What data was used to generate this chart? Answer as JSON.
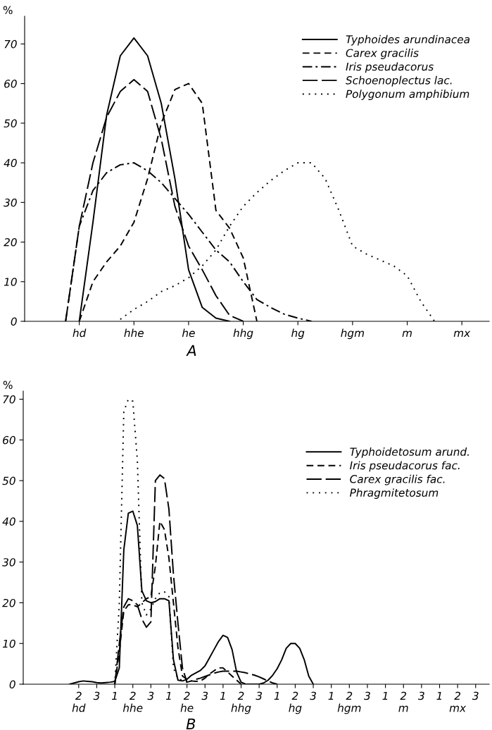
{
  "chart_data": [
    {
      "type": "line",
      "title": "A",
      "ylabel": "%",
      "ylim": [
        0,
        77
      ],
      "yticks": [
        0,
        10,
        20,
        30,
        40,
        50,
        60,
        70
      ],
      "categories": [
        null,
        null,
        null,
        null,
        "hd",
        null,
        null,
        null,
        "hhe",
        null,
        null,
        null,
        "he",
        null,
        null,
        null,
        "hhg",
        null,
        null,
        null,
        "hg",
        null,
        null,
        null,
        "hgm",
        null,
        null,
        null,
        "m",
        null,
        null,
        null,
        "mx",
        null,
        null
      ],
      "legend": "top right",
      "grid": false,
      "marker": "none",
      "series": [
        {
          "name": "Typhoides arundinacea",
          "color": "#000000",
          "line_style": "solid",
          "values": [
            null,
            null,
            null,
            null,
            0,
            25,
            52,
            67,
            71.5,
            67,
            55,
            36,
            13,
            3.5,
            0.8,
            0,
            null,
            null,
            null,
            null,
            null,
            null,
            null,
            null,
            null,
            null,
            null,
            null,
            null,
            null,
            null,
            null,
            null,
            null,
            null
          ]
        },
        {
          "name": "Carex gracilis",
          "color": "#000000",
          "line_style": "dashed",
          "values": [
            null,
            null,
            null,
            null,
            0,
            10,
            15,
            19,
            25,
            36,
            50,
            58.5,
            60,
            55,
            28,
            23.5,
            16,
            0,
            null,
            null,
            null,
            null,
            null,
            null,
            null,
            null,
            null,
            null,
            null,
            null,
            null,
            null,
            null,
            null,
            null
          ]
        },
        {
          "name": "Iris pseudacorus",
          "color": "#000000",
          "line_style": "dashdot",
          "values": [
            null,
            null,
            null,
            0,
            24,
            33,
            37.5,
            39.5,
            40,
            38,
            35,
            31,
            27,
            22.5,
            18,
            15,
            10,
            5.5,
            3.5,
            1.8,
            0.8,
            0,
            null,
            null,
            null,
            null,
            null,
            null,
            null,
            null,
            null,
            null,
            null,
            null,
            null
          ]
        },
        {
          "name": "Schoenoplectus lac.",
          "color": "#000000",
          "line_style": "longdash",
          "values": [
            null,
            null,
            null,
            0,
            24,
            40,
            51.5,
            58,
            61,
            58,
            46,
            29,
            19,
            13,
            6.5,
            1.5,
            0,
            null,
            null,
            null,
            null,
            null,
            null,
            null,
            null,
            null,
            null,
            null,
            null,
            null,
            null,
            null,
            null,
            null,
            null
          ]
        },
        {
          "name": "Polygonum amphibium",
          "color": "#000000",
          "line_style": "dotted",
          "values": [
            null,
            null,
            null,
            null,
            null,
            null,
            null,
            0.5,
            3,
            5,
            7.5,
            9,
            11,
            14,
            18,
            24,
            29,
            32.5,
            35.5,
            38,
            40,
            40,
            36,
            28,
            19,
            17,
            15.5,
            14,
            11.5,
            5,
            0,
            null,
            null,
            null,
            null
          ]
        }
      ]
    },
    {
      "type": "line",
      "title": "B",
      "ylabel": "%",
      "ylim": [
        0,
        72
      ],
      "yticks": [
        0,
        10,
        20,
        30,
        40,
        50,
        60,
        70
      ],
      "categories": [
        null,
        null,
        null,
        null,
        null,
        null,
        null,
        null,
        null,
        null,
        null,
        null,
        "2\nhd",
        null,
        null,
        null,
        "3",
        null,
        null,
        null,
        "1",
        null,
        null,
        null,
        "2\nhhe",
        null,
        null,
        null,
        "3",
        null,
        null,
        null,
        "1",
        null,
        null,
        null,
        "2\nhe",
        null,
        null,
        null,
        "3",
        null,
        null,
        null,
        "1",
        null,
        null,
        null,
        "2\nhhg",
        null,
        null,
        null,
        "3",
        null,
        null,
        null,
        "1",
        null,
        null,
        null,
        "2\nhg",
        null,
        null,
        null,
        "3",
        null,
        null,
        null,
        "1",
        null,
        null,
        null,
        "2\nhgm",
        null,
        null,
        null,
        "3",
        null,
        null,
        null,
        "1",
        null,
        null,
        null,
        "2\nm",
        null,
        null,
        null,
        "3",
        null,
        null,
        null,
        "1",
        null,
        null,
        null,
        "2\nmx",
        null,
        null,
        null,
        "3",
        null,
        null,
        null
      ],
      "legend": "right",
      "grid": false,
      "marker": "none",
      "series": [
        {
          "name": "Typhoidetosum arund.",
          "color": "#000000",
          "line_style": "solid",
          "values": [
            null,
            null,
            null,
            null,
            null,
            null,
            null,
            null,
            null,
            null,
            0,
            0.3,
            0.6,
            0.8,
            0.7,
            0.6,
            0.4,
            0.3,
            0.4,
            0.5,
            0.7,
            4,
            33,
            42,
            42.5,
            39,
            23,
            20.5,
            20,
            20.3,
            21,
            21,
            20.5,
            6,
            1,
            0.8,
            1.2,
            2.2,
            2.8,
            3.4,
            4.5,
            6.5,
            8.5,
            10.5,
            12,
            11.5,
            8.5,
            3,
            0.5,
            0,
            0,
            0,
            0,
            0.3,
            1,
            2.2,
            3.8,
            6,
            8.8,
            10,
            10,
            8.8,
            6,
            2,
            0,
            null,
            null,
            null,
            null,
            null,
            null,
            null,
            null,
            null,
            null,
            null,
            null,
            null,
            null,
            null,
            null,
            null,
            null,
            null,
            null,
            null,
            null,
            null,
            null,
            null,
            null,
            null,
            null,
            null,
            null,
            null,
            null,
            null,
            null,
            null,
            null,
            null,
            null,
            null
          ]
        },
        {
          "name": "Iris pseudacorus fac.",
          "color": "#000000",
          "line_style": "dashed",
          "values": [
            null,
            null,
            null,
            null,
            null,
            null,
            null,
            null,
            null,
            null,
            null,
            null,
            null,
            null,
            null,
            null,
            null,
            null,
            null,
            null,
            0,
            8,
            18,
            19.5,
            19.5,
            19,
            20,
            21,
            21.5,
            29,
            40,
            38,
            31,
            20,
            9,
            2,
            1.2,
            0.8,
            0.7,
            0.8,
            1.5,
            2.5,
            3.3,
            4,
            4,
            3,
            2,
            1,
            0,
            null,
            null,
            null,
            null,
            null,
            null,
            null,
            null,
            null,
            null,
            null,
            null,
            null,
            null,
            null,
            null,
            null,
            null,
            null,
            null,
            null,
            null,
            null,
            null,
            null,
            null,
            null,
            null,
            null,
            null,
            null,
            null,
            null,
            null,
            null,
            null,
            null,
            null,
            null,
            null,
            null,
            null,
            null,
            null,
            null,
            null,
            null,
            null,
            null,
            null,
            null,
            null,
            null,
            null,
            null
          ]
        },
        {
          "name": "Carex gracilis fac.",
          "color": "#000000",
          "line_style": "longdash",
          "values": [
            null,
            null,
            null,
            null,
            null,
            null,
            null,
            null,
            null,
            null,
            null,
            null,
            null,
            null,
            null,
            null,
            null,
            null,
            null,
            null,
            0,
            10,
            19,
            21,
            20.5,
            19.5,
            16,
            14,
            15.3,
            50,
            51.4,
            50.5,
            43,
            27,
            15,
            4,
            0.5,
            0.8,
            1.2,
            1.5,
            1.9,
            2.3,
            2.7,
            3,
            3.2,
            3.2,
            3.2,
            3.2,
            3,
            2.8,
            2.5,
            2.2,
            1.8,
            1.3,
            0.8,
            0.3,
            0,
            null,
            null,
            null,
            null,
            null,
            null,
            null,
            null,
            null,
            null,
            null,
            null,
            null,
            null,
            null,
            null,
            null,
            null,
            null,
            null,
            null,
            null,
            null,
            null,
            null,
            null,
            null,
            null,
            null,
            null,
            null,
            null,
            null,
            null,
            null,
            null,
            null,
            null,
            null,
            null,
            null,
            null,
            null,
            null,
            null,
            null,
            null
          ]
        },
        {
          "name": "Phragmitetosum",
          "color": "#000000",
          "line_style": "dotted",
          "values": [
            null,
            null,
            null,
            null,
            null,
            null,
            null,
            null,
            null,
            null,
            null,
            null,
            null,
            null,
            null,
            null,
            null,
            null,
            null,
            null,
            0,
            20,
            67,
            70,
            69.5,
            55,
            20,
            17,
            18.5,
            21,
            22.5,
            22.7,
            21.5,
            4,
            1.3,
            1,
            0.5,
            0,
            null,
            null,
            null,
            null,
            null,
            null,
            null,
            null,
            null,
            null,
            null,
            null,
            null,
            null,
            null,
            null,
            null,
            null,
            null,
            null,
            null,
            null,
            null,
            null,
            null,
            null,
            null,
            null,
            null,
            null,
            null,
            null,
            null,
            null,
            null,
            null,
            null,
            null,
            null,
            null,
            null,
            null,
            null,
            null,
            null,
            null,
            null,
            null,
            null,
            null,
            null,
            null,
            null,
            null,
            null,
            null,
            null,
            null,
            null,
            null,
            null,
            null,
            null,
            null,
            null,
            null
          ]
        }
      ]
    }
  ]
}
